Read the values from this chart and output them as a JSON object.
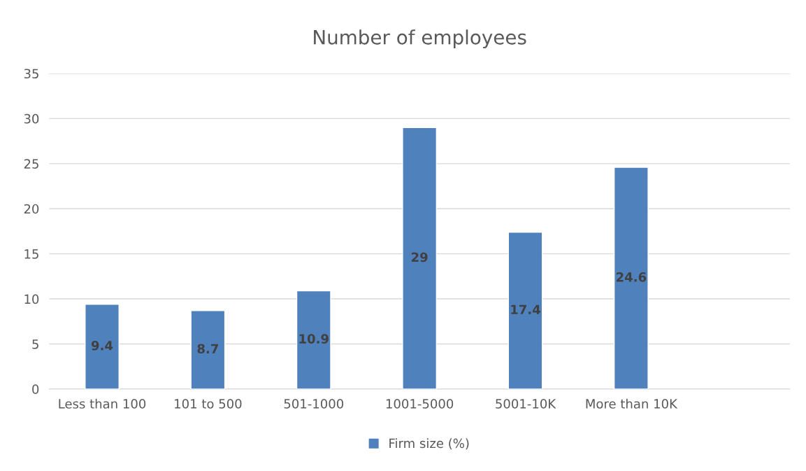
{
  "chart_data": {
    "type": "bar",
    "title": "Number of employees",
    "categories": [
      "Less than 100",
      "101 to 500",
      "501-1000",
      "1001-5000",
      "5001-10K",
      "More than 10K",
      null
    ],
    "series": [
      {
        "name": "Firm size (%)",
        "color": "#4f81bd",
        "values": [
          9.4,
          8.7,
          10.9,
          29,
          17.4,
          24.6,
          null
        ]
      }
    ],
    "ylim": [
      0,
      35
    ],
    "yticks": [
      0,
      5,
      10,
      15,
      20,
      25,
      30,
      35
    ],
    "grid": "y",
    "legend": "bottom",
    "data_labels": true
  }
}
